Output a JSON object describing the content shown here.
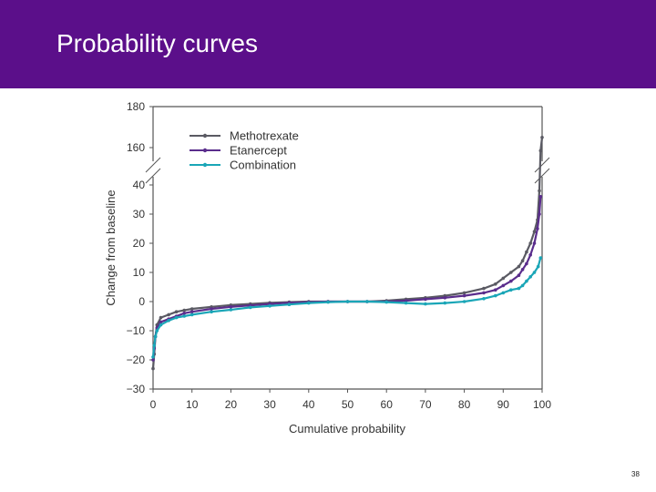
{
  "slide": {
    "title": "Probability curves",
    "page_number": "38",
    "header_color": "#5b0f8a"
  },
  "chart_data": {
    "type": "line",
    "title": "",
    "xlabel": "Cumulative probability",
    "ylabel": "Change from baseline",
    "xlim": [
      0,
      100
    ],
    "xticks": [
      0,
      10,
      20,
      30,
      40,
      50,
      60,
      70,
      80,
      90,
      100
    ],
    "ylim_lower": [
      -30,
      40
    ],
    "ylim_upper": [
      160,
      180
    ],
    "yticks_lower": [
      -30,
      -20,
      -10,
      0,
      10,
      20,
      30,
      40
    ],
    "yticks_upper": [
      160,
      180
    ],
    "yticks_lower_labels": [
      "−30",
      "−20",
      "−10",
      "0",
      "10",
      "20",
      "30",
      "40"
    ],
    "yticks_upper_labels": [
      "160",
      "180"
    ],
    "axis_break": "between 40 and 160",
    "grid": false,
    "legend_position": "top-left",
    "series": [
      {
        "name": "Methotrexate",
        "color": "#5a5a63",
        "points": [
          [
            0,
            -23
          ],
          [
            0.3,
            -18
          ],
          [
            0.6,
            -12
          ],
          [
            1,
            -8
          ],
          [
            2,
            -5.5
          ],
          [
            4,
            -4.5
          ],
          [
            6,
            -3.5
          ],
          [
            8,
            -3
          ],
          [
            10,
            -2.5
          ],
          [
            15,
            -1.8
          ],
          [
            20,
            -1.2
          ],
          [
            25,
            -0.8
          ],
          [
            30,
            -0.4
          ],
          [
            35,
            -0.2
          ],
          [
            40,
            0
          ],
          [
            45,
            0
          ],
          [
            50,
            0
          ],
          [
            55,
            0
          ],
          [
            60,
            0.3
          ],
          [
            65,
            0.8
          ],
          [
            70,
            1.3
          ],
          [
            75,
            2
          ],
          [
            80,
            3
          ],
          [
            85,
            4.5
          ],
          [
            88,
            6
          ],
          [
            90,
            8
          ],
          [
            92,
            10
          ],
          [
            94,
            12
          ],
          [
            95,
            14
          ],
          [
            96,
            17
          ],
          [
            97,
            20
          ],
          [
            98,
            24
          ],
          [
            98.8,
            28
          ],
          [
            99.3,
            38
          ],
          [
            99.6,
            150
          ],
          [
            100,
            165
          ]
        ]
      },
      {
        "name": "Etanercept",
        "color": "#5a2d8c",
        "points": [
          [
            0,
            -20
          ],
          [
            0.3,
            -16
          ],
          [
            0.6,
            -12
          ],
          [
            1,
            -9
          ],
          [
            2,
            -7
          ],
          [
            4,
            -6
          ],
          [
            6,
            -5
          ],
          [
            8,
            -4
          ],
          [
            10,
            -3.5
          ],
          [
            15,
            -2.5
          ],
          [
            20,
            -1.8
          ],
          [
            25,
            -1.3
          ],
          [
            30,
            -0.8
          ],
          [
            35,
            -0.4
          ],
          [
            40,
            -0.2
          ],
          [
            45,
            0
          ],
          [
            50,
            0
          ],
          [
            55,
            0
          ],
          [
            60,
            0
          ],
          [
            65,
            0.3
          ],
          [
            70,
            0.8
          ],
          [
            75,
            1.3
          ],
          [
            80,
            2
          ],
          [
            85,
            3
          ],
          [
            88,
            4
          ],
          [
            90,
            5.5
          ],
          [
            92,
            7
          ],
          [
            94,
            9
          ],
          [
            95,
            11
          ],
          [
            96,
            13
          ],
          [
            97,
            16
          ],
          [
            98,
            20
          ],
          [
            98.8,
            25
          ],
          [
            99.3,
            30
          ],
          [
            99.6,
            36
          ]
        ]
      },
      {
        "name": "Combination",
        "color": "#1aa6b7",
        "points": [
          [
            0,
            -19
          ],
          [
            0.3,
            -15
          ],
          [
            0.6,
            -12
          ],
          [
            1,
            -10
          ],
          [
            2,
            -8
          ],
          [
            4,
            -6.5
          ],
          [
            6,
            -5.5
          ],
          [
            8,
            -5
          ],
          [
            10,
            -4.5
          ],
          [
            15,
            -3.5
          ],
          [
            20,
            -2.8
          ],
          [
            25,
            -2
          ],
          [
            30,
            -1.5
          ],
          [
            35,
            -1
          ],
          [
            40,
            -0.5
          ],
          [
            45,
            -0.2
          ],
          [
            50,
            0
          ],
          [
            55,
            0
          ],
          [
            60,
            -0.2
          ],
          [
            65,
            -0.5
          ],
          [
            70,
            -0.8
          ],
          [
            75,
            -0.5
          ],
          [
            80,
            0
          ],
          [
            85,
            1
          ],
          [
            88,
            2
          ],
          [
            90,
            3
          ],
          [
            92,
            4
          ],
          [
            94,
            4.5
          ],
          [
            95,
            5.5
          ],
          [
            96,
            7
          ],
          [
            97,
            8.5
          ],
          [
            98,
            10
          ],
          [
            99,
            12
          ],
          [
            99.6,
            15
          ]
        ]
      }
    ]
  }
}
